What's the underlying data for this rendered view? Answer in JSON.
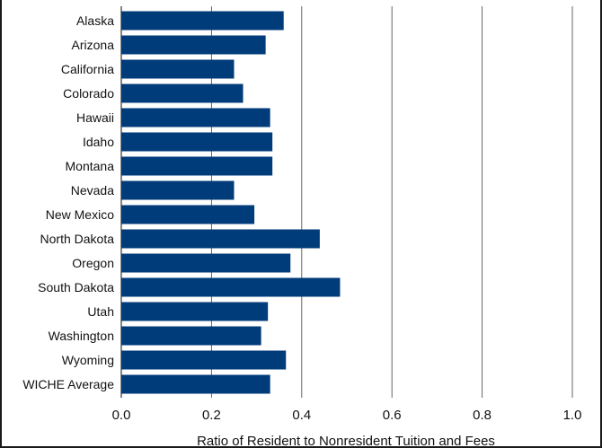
{
  "chart_data": {
    "type": "bar",
    "orientation": "horizontal",
    "categories": [
      "Alaska",
      "Arizona",
      "California",
      "Colorado",
      "Hawaii",
      "Idaho",
      "Montana",
      "Nevada",
      "New Mexico",
      "North Dakota",
      "Oregon",
      "South Dakota",
      "Utah",
      "Washington",
      "Wyoming",
      "WICHE Average"
    ],
    "values": [
      0.36,
      0.32,
      0.25,
      0.27,
      0.33,
      0.335,
      0.335,
      0.25,
      0.295,
      0.44,
      0.375,
      0.485,
      0.325,
      0.31,
      0.365,
      0.33
    ],
    "xlabel": "Ratio of Resident to Nonresident Tuition and Fees",
    "xlim": [
      0,
      1.0
    ],
    "xticks": [
      "0.0",
      "0.2",
      "0.4",
      "0.6",
      "0.8",
      "1.0"
    ],
    "grid": "vertical",
    "bar_color": "#003B7A"
  }
}
